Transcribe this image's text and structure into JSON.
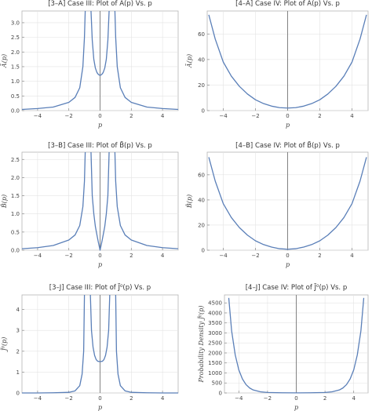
{
  "chart_data": [
    {
      "type": "line",
      "title": "[3–A]  Case III: Plot of  Ã(p) Vs. p",
      "xlabel": "p",
      "ylabel": "Ã(p)",
      "xlim": [
        -5,
        5
      ],
      "ylim": [
        0,
        3.4
      ],
      "xticks": [
        -4,
        -2,
        0,
        2,
        4
      ],
      "yticks": [
        0.0,
        0.5,
        1.0,
        1.5,
        2.0,
        2.5,
        3.0
      ],
      "ytick_labels": [
        "0.0",
        "0.5",
        "1.0",
        "1.5",
        "2.0",
        "2.5",
        "3.0"
      ],
      "grid": true,
      "color": "#5a7fb8",
      "series": [
        {
          "x": [
            -5,
            -4,
            -3,
            -2,
            -1.6,
            -1.3,
            -1.1,
            -1.0,
            -0.95
          ],
          "y": [
            0.04,
            0.07,
            0.12,
            0.28,
            0.45,
            0.78,
            1.5,
            2.5,
            3.4
          ]
        },
        {
          "x": [
            -0.58,
            -0.5,
            -0.4,
            -0.3,
            -0.2,
            -0.1,
            0,
            0.1,
            0.2,
            0.3,
            0.4,
            0.5,
            0.58
          ],
          "y": [
            3.4,
            2.4,
            1.75,
            1.45,
            1.3,
            1.23,
            1.2,
            1.23,
            1.3,
            1.45,
            1.75,
            2.4,
            3.4
          ]
        },
        {
          "x": [
            0.95,
            1.0,
            1.1,
            1.3,
            1.6,
            2,
            3,
            4,
            5
          ],
          "y": [
            3.4,
            2.5,
            1.5,
            0.78,
            0.45,
            0.28,
            0.12,
            0.07,
            0.04
          ]
        }
      ]
    },
    {
      "type": "line",
      "title": "[4–A]  Case IV: Plot of  Ã(p) Vs. p",
      "xlabel": "p",
      "ylabel": "Ã(p)",
      "xlim": [
        -5,
        5
      ],
      "ylim": [
        0,
        78
      ],
      "xticks": [
        -4,
        -2,
        0,
        2,
        4
      ],
      "yticks": [
        0,
        20,
        40,
        60
      ],
      "ytick_labels": [
        "0",
        "20",
        "40",
        "60"
      ],
      "grid": true,
      "color": "#5a7fb8",
      "series": [
        {
          "x": [
            -4.9,
            -4.5,
            -4,
            -3.5,
            -3,
            -2.5,
            -2,
            -1.5,
            -1,
            -0.5,
            0,
            0.5,
            1,
            1.5,
            2,
            2.5,
            3,
            3.5,
            4,
            4.5,
            4.9
          ],
          "y": [
            75,
            56,
            38,
            27,
            19,
            13,
            8.5,
            5.5,
            3.5,
            2.3,
            2,
            2.3,
            3.5,
            5.5,
            8.5,
            13,
            19,
            27,
            38,
            56,
            75
          ]
        }
      ]
    },
    {
      "type": "line",
      "title": "[3–B]  Case III: Plot of  B̃(p) Vs. p",
      "xlabel": "p",
      "ylabel": "B̃(p)",
      "xlim": [
        -5,
        5
      ],
      "ylim": [
        0,
        2.7
      ],
      "xticks": [
        -4,
        -2,
        0,
        2,
        4
      ],
      "yticks": [
        0.0,
        0.5,
        1.0,
        1.5,
        2.0,
        2.5
      ],
      "ytick_labels": [
        "0.0",
        "0.5",
        "1.0",
        "1.5",
        "2.0",
        "2.5"
      ],
      "grid": true,
      "color": "#5a7fb8",
      "series": [
        {
          "x": [
            -5,
            -4,
            -3,
            -2,
            -1.6,
            -1.3,
            -1.1,
            -1.0,
            -0.95
          ],
          "y": [
            0.04,
            0.07,
            0.13,
            0.28,
            0.42,
            0.68,
            1.2,
            1.9,
            2.7
          ]
        },
        {
          "x": [
            -0.58,
            -0.5,
            -0.4,
            -0.3,
            -0.2,
            -0.1,
            0,
            0.1,
            0.2,
            0.3,
            0.4,
            0.5,
            0.58
          ],
          "y": [
            2.7,
            1.5,
            1.0,
            0.65,
            0.42,
            0.2,
            0.0,
            0.2,
            0.42,
            0.65,
            1.0,
            1.5,
            2.7
          ]
        },
        {
          "x": [
            0.95,
            1.0,
            1.1,
            1.3,
            1.6,
            2,
            3,
            4,
            5
          ],
          "y": [
            2.7,
            1.9,
            1.2,
            0.68,
            0.42,
            0.28,
            0.13,
            0.07,
            0.04
          ]
        }
      ]
    },
    {
      "type": "line",
      "title": "[4–B]  Case IV: Plot of  B̃(p) Vs. p",
      "xlabel": "p",
      "ylabel": "B̃(p)",
      "xlim": [
        -5,
        5
      ],
      "ylim": [
        0,
        78
      ],
      "xticks": [
        -4,
        -2,
        0,
        2,
        4
      ],
      "yticks": [
        0,
        20,
        40,
        60
      ],
      "ytick_labels": [
        "0",
        "20",
        "40",
        "60"
      ],
      "grid": true,
      "color": "#5a7fb8",
      "series": [
        {
          "x": [
            -4.9,
            -4.5,
            -4,
            -3.5,
            -3,
            -2.5,
            -2,
            -1.5,
            -1,
            -0.5,
            0,
            0.5,
            1,
            1.5,
            2,
            2.5,
            3,
            3.5,
            4,
            4.5,
            4.9
          ],
          "y": [
            74,
            55,
            37,
            26,
            18,
            12,
            7.5,
            4.5,
            2.5,
            1.2,
            0.8,
            1.2,
            2.5,
            4.5,
            7.5,
            12,
            18,
            26,
            37,
            55,
            74
          ]
        }
      ]
    },
    {
      "type": "line",
      "title": "[3–J]  Case III: Plot of  J̃⁰(p) Vs. p",
      "xlabel": "p",
      "ylabel": "J̃⁰(p)",
      "xlim": [
        -5,
        5
      ],
      "ylim": [
        0,
        4.7
      ],
      "xticks": [
        -4,
        -2,
        0,
        2,
        4
      ],
      "yticks": [
        0,
        1,
        2,
        3,
        4
      ],
      "ytick_labels": [
        "0",
        "1",
        "2",
        "3",
        "4"
      ],
      "grid": true,
      "color": "#5a7fb8",
      "series": [
        {
          "x": [
            -5,
            -4,
            -3,
            -2,
            -1.6,
            -1.3,
            -1.15,
            -1.05,
            -1.0
          ],
          "y": [
            0.0,
            0.0,
            0.01,
            0.03,
            0.1,
            0.35,
            0.9,
            2.0,
            4.7
          ]
        },
        {
          "x": [
            -0.62,
            -0.55,
            -0.45,
            -0.35,
            -0.25,
            -0.15,
            0,
            0.15,
            0.25,
            0.35,
            0.45,
            0.55,
            0.62
          ],
          "y": [
            4.7,
            3.0,
            2.2,
            1.8,
            1.6,
            1.52,
            1.5,
            1.52,
            1.6,
            1.8,
            2.2,
            3.0,
            4.7
          ]
        },
        {
          "x": [
            1.0,
            1.05,
            1.15,
            1.3,
            1.6,
            2,
            3,
            4,
            5
          ],
          "y": [
            4.7,
            2.0,
            0.9,
            0.35,
            0.1,
            0.03,
            0.01,
            0.0,
            0.0
          ]
        }
      ]
    },
    {
      "type": "line",
      "title": "[4–J]  Case IV: Plot of  J̃⁰(p) Vs. p",
      "xlabel": "p",
      "ylabel": "Probability Density J̃⁰(p)",
      "xlim": [
        -5,
        5
      ],
      "ylim": [
        0,
        4900
      ],
      "xticks": [
        -4,
        -2,
        0,
        2,
        4
      ],
      "yticks": [
        0,
        500,
        1000,
        1500,
        2000,
        2500,
        3000,
        3500,
        4000,
        4500
      ],
      "ytick_labels": [
        "0",
        "500",
        "1000",
        "1500",
        "2000",
        "2500",
        "3000",
        "3500",
        "4000",
        "4500"
      ],
      "grid": true,
      "color": "#5a7fb8",
      "series": [
        {
          "x": [
            -4.7,
            -4.5,
            -4.25,
            -4,
            -3.75,
            -3.5,
            -3.25,
            -3,
            -2.5,
            -2,
            -1,
            0,
            1,
            2,
            2.5,
            3,
            3.25,
            3.5,
            3.75,
            4,
            4.25,
            4.5,
            4.7
          ],
          "y": [
            4750,
            3100,
            1900,
            1150,
            700,
            420,
            250,
            150,
            60,
            25,
            10,
            5,
            10,
            25,
            60,
            150,
            250,
            420,
            700,
            1150,
            1900,
            3100,
            4750
          ]
        }
      ]
    }
  ]
}
